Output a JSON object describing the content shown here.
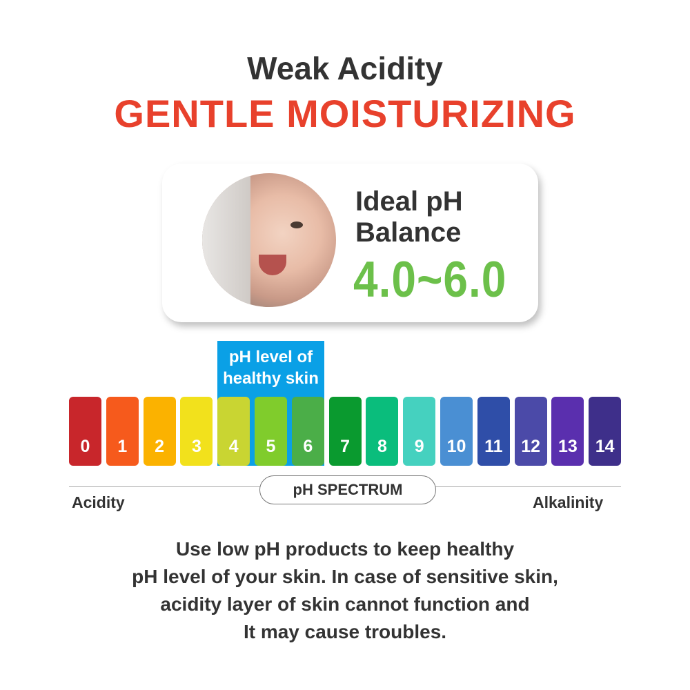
{
  "header": {
    "subtitle": "Weak Acidity",
    "title": "GENTLE MOISTURIZING",
    "title_color": "#e8412c"
  },
  "card": {
    "label_line1": "Ideal pH",
    "label_line2": "Balance",
    "range": "4.0~6.0",
    "range_color": "#6cc04a",
    "image": "smiling-baby-photo"
  },
  "spectrum": {
    "highlight_label_line1": "pH level of",
    "highlight_label_line2": "healthy skin",
    "highlight_color": "#0aa0e6",
    "highlight_range": [
      4,
      6
    ],
    "blocks": [
      {
        "label": "0",
        "color": "#c8262b"
      },
      {
        "label": "1",
        "color": "#f65a1c"
      },
      {
        "label": "2",
        "color": "#fbb200"
      },
      {
        "label": "3",
        "color": "#f2e11c"
      },
      {
        "label": "4",
        "color": "#c9d532"
      },
      {
        "label": "5",
        "color": "#80cc2c"
      },
      {
        "label": "6",
        "color": "#4bae48"
      },
      {
        "label": "7",
        "color": "#0a9a2f"
      },
      {
        "label": "8",
        "color": "#0abd7c"
      },
      {
        "label": "9",
        "color": "#45d1bf"
      },
      {
        "label": "10",
        "color": "#4a8fd3"
      },
      {
        "label": "11",
        "color": "#2f4ea8"
      },
      {
        "label": "12",
        "color": "#4b4aa8"
      },
      {
        "label": "13",
        "color": "#5a2fae"
      },
      {
        "label": "14",
        "color": "#3e2f8a"
      }
    ],
    "pill_label": "pH SPECTRUM",
    "left_label": "Acidity",
    "right_label": "Alkalinity"
  },
  "description": [
    "Use low pH products to keep healthy",
    "pH level of your skin. In case of sensitive skin,",
    "acidity layer of skin cannot function and",
    "It may cause troubles."
  ]
}
